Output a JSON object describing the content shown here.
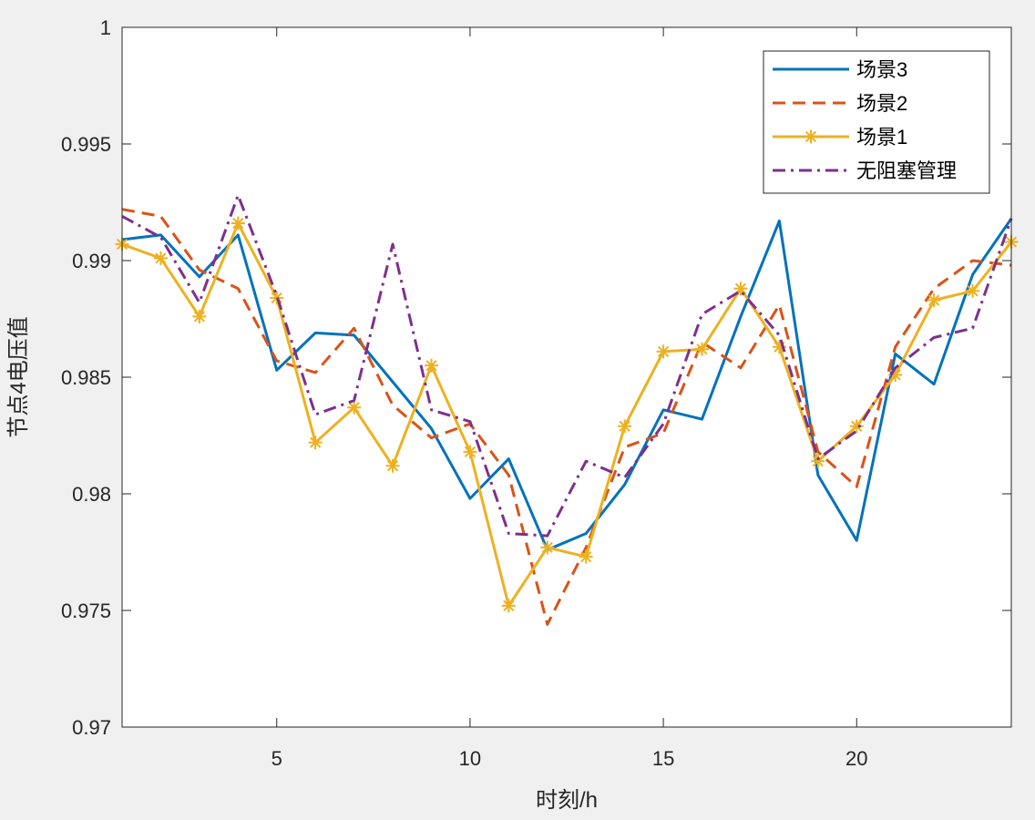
{
  "chart_data": {
    "type": "line",
    "title": "",
    "xlabel": "时刻/h",
    "ylabel": "节点4电压值",
    "xlim": [
      1,
      24
    ],
    "ylim": [
      0.97,
      1.0
    ],
    "x_ticks": [
      5,
      10,
      15,
      20
    ],
    "x_tick_labels": [
      "5",
      "10",
      "15",
      "20"
    ],
    "y_ticks": [
      0.97,
      0.975,
      0.98,
      0.985,
      0.99,
      0.995,
      1.0
    ],
    "y_tick_labels": [
      "0.97",
      "0.975",
      "0.98",
      "0.985",
      "0.99",
      "0.995",
      "1"
    ],
    "grid": false,
    "legend_position": "top-right",
    "x": [
      1,
      2,
      3,
      4,
      5,
      6,
      7,
      8,
      9,
      10,
      11,
      12,
      13,
      14,
      15,
      16,
      17,
      18,
      19,
      20,
      21,
      22,
      23,
      24
    ],
    "series": [
      {
        "name": "场景3",
        "color": "#0072BD",
        "line_style": "solid",
        "marker": "none",
        "values": [
          0.9909,
          0.9911,
          0.9893,
          0.9911,
          0.9853,
          0.9869,
          0.9868,
          0.9848,
          0.9828,
          0.9798,
          0.9815,
          0.9776,
          0.9783,
          0.9804,
          0.9836,
          0.9832,
          0.9876,
          0.9917,
          0.9808,
          0.978,
          0.986,
          0.9847,
          0.9894,
          0.9918
        ]
      },
      {
        "name": "场景2",
        "color": "#D95319",
        "line_style": "dashed",
        "marker": "none",
        "values": [
          0.9922,
          0.9919,
          0.9896,
          0.9888,
          0.9857,
          0.9852,
          0.9871,
          0.9838,
          0.9824,
          0.983,
          0.9808,
          0.9744,
          0.9777,
          0.982,
          0.9826,
          0.9865,
          0.9854,
          0.9881,
          0.9818,
          0.9803,
          0.9863,
          0.9888,
          0.99,
          0.9898
        ]
      },
      {
        "name": "场景1",
        "color": "#EDB120",
        "line_style": "solid",
        "marker": "star",
        "values": [
          0.9907,
          0.9901,
          0.9876,
          0.9916,
          0.9884,
          0.9822,
          0.9837,
          0.9812,
          0.9855,
          0.9818,
          0.9752,
          0.9777,
          0.9773,
          0.9829,
          0.9861,
          0.9862,
          0.9888,
          0.9863,
          0.9814,
          0.9829,
          0.9851,
          0.9883,
          0.9887,
          0.9908
        ]
      },
      {
        "name": "无阻塞管理",
        "color": "#7E2F8E",
        "line_style": "dashdot",
        "marker": "none",
        "values": [
          0.9919,
          0.991,
          0.9882,
          0.9928,
          0.9885,
          0.9834,
          0.984,
          0.9907,
          0.9836,
          0.9831,
          0.9783,
          0.9782,
          0.9814,
          0.9807,
          0.983,
          0.9877,
          0.9887,
          0.9868,
          0.9815,
          0.9827,
          0.9854,
          0.9867,
          0.9871,
          0.9918
        ]
      }
    ]
  }
}
